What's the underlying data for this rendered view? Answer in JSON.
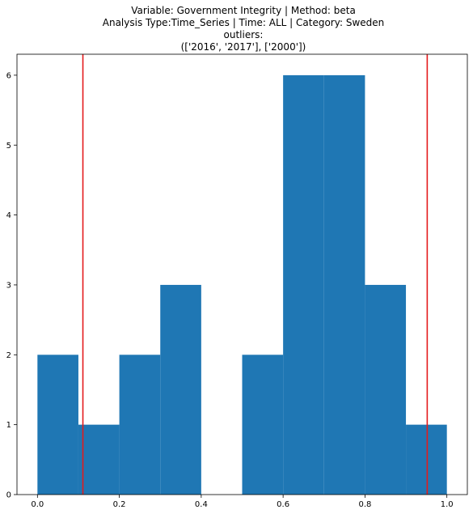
{
  "chart_data": {
    "type": "histogram",
    "title_lines": [
      "Variable: Government Integrity | Method: beta",
      "Analysis Type:Time_Series | Time: ALL | Category: Sweden",
      "outliers:",
      "(['2016', '2017'], ['2000'])"
    ],
    "xlabel": "",
    "ylabel": "",
    "xlim": [
      -0.05,
      1.05
    ],
    "ylim": [
      0,
      6.3
    ],
    "xticks": [
      0.0,
      0.2,
      0.4,
      0.6,
      0.8,
      1.0
    ],
    "xtick_labels": [
      "0.0",
      "0.2",
      "0.4",
      "0.6",
      "0.8",
      "1.0"
    ],
    "yticks": [
      0,
      1,
      2,
      3,
      4,
      5,
      6
    ],
    "ytick_labels": [
      "0",
      "1",
      "2",
      "3",
      "4",
      "5",
      "6"
    ],
    "bins": [
      {
        "x0": 0.0,
        "x1": 0.1,
        "count": 2
      },
      {
        "x0": 0.1,
        "x1": 0.2,
        "count": 1
      },
      {
        "x0": 0.2,
        "x1": 0.3,
        "count": 2
      },
      {
        "x0": 0.3,
        "x1": 0.4,
        "count": 3
      },
      {
        "x0": 0.4,
        "x1": 0.5,
        "count": 0
      },
      {
        "x0": 0.5,
        "x1": 0.6,
        "count": 2
      },
      {
        "x0": 0.6,
        "x1": 0.7,
        "count": 6
      },
      {
        "x0": 0.7,
        "x1": 0.8,
        "count": 6
      },
      {
        "x0": 0.8,
        "x1": 0.9,
        "count": 3
      },
      {
        "x0": 0.9,
        "x1": 1.0,
        "count": 1
      }
    ],
    "bar_color": "#1f77b4",
    "vlines": [
      {
        "x": 0.111,
        "color": "#e41a1c"
      },
      {
        "x": 0.952,
        "color": "#e41a1c"
      }
    ],
    "grid": false,
    "legend": "none"
  }
}
